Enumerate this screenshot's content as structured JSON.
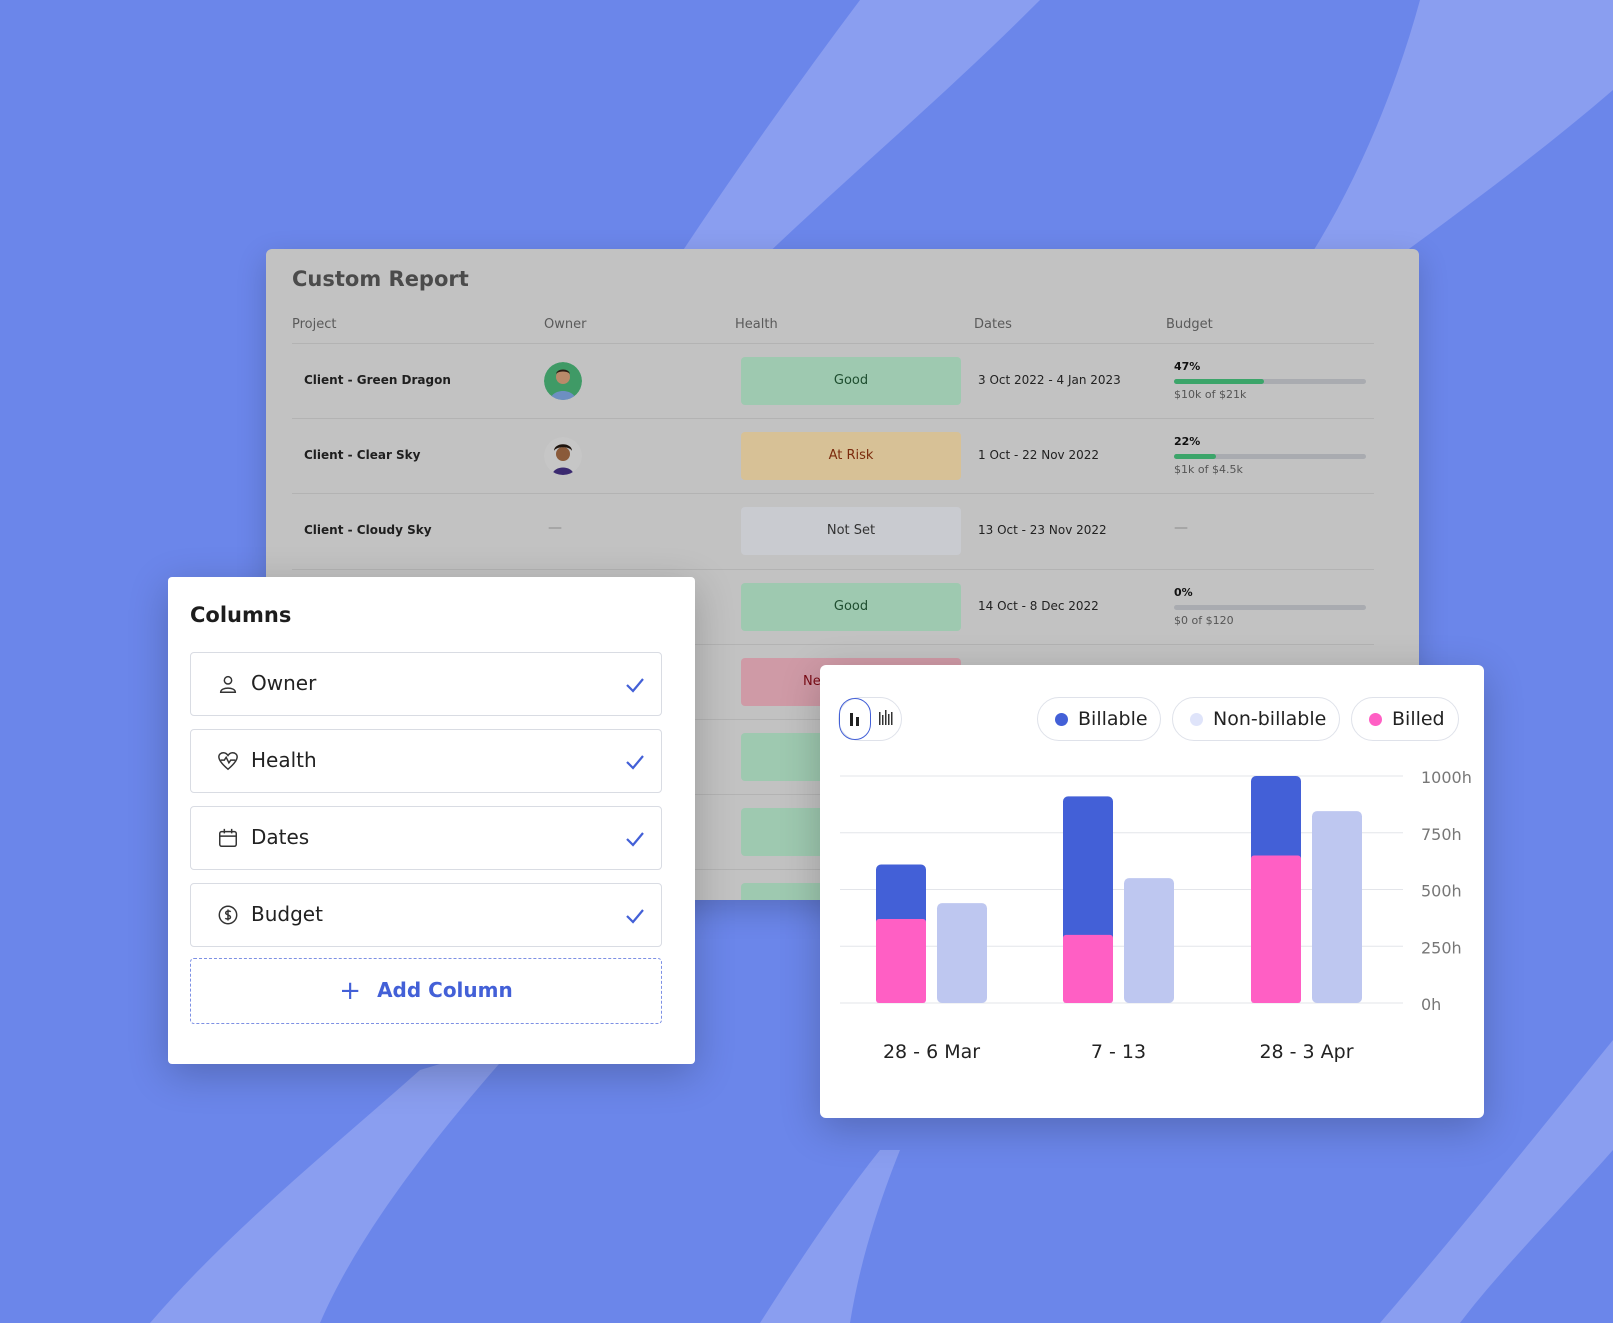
{
  "colors": {
    "background": "#6b86ea",
    "billable": "#4360d7",
    "non_billable": "#bec7f0",
    "billed": "#ff5fc4",
    "accent": "#4360d7"
  },
  "report": {
    "title": "Custom Report",
    "headers": [
      "Project",
      "Owner",
      "Health",
      "Dates",
      "Budget"
    ],
    "rows": [
      {
        "project": "Client - Green Dragon",
        "owner": "avatar",
        "health": "Good",
        "health_status": "good",
        "dates": "3 Oct 2022 - 4 Jan 2023",
        "budget_pct": "47%",
        "budget_fraction": 0.47,
        "budget_amount": "$10k of $21k"
      },
      {
        "project": "Client - Clear Sky",
        "owner": "avatar",
        "health": "At Risk",
        "health_status": "risk",
        "dates": "1 Oct - 22 Nov 2022",
        "budget_pct": "22%",
        "budget_fraction": 0.22,
        "budget_amount": "$1k of $4.5k"
      },
      {
        "project": "Client - Cloudy Sky",
        "owner": "—",
        "health": "Not Set",
        "health_status": "notset",
        "dates": "13 Oct - 23 Nov 2022",
        "budget_empty": "—"
      },
      {
        "project": "",
        "health": "Good",
        "health_status": "good",
        "dates": "14 Oct - 8 Dec 2022",
        "budget_pct": "0%",
        "budget_fraction": 0,
        "budget_amount": "$0 of $120"
      },
      {
        "project": "",
        "health": "Nee",
        "health_status": "need"
      }
    ]
  },
  "columns_panel": {
    "title": "Columns",
    "items": [
      {
        "label": "Owner",
        "icon": "user-icon",
        "checked": true
      },
      {
        "label": "Health",
        "icon": "heart-pulse-icon",
        "checked": true
      },
      {
        "label": "Dates",
        "icon": "calendar-icon",
        "checked": true
      },
      {
        "label": "Budget",
        "icon": "dollar-circle-icon",
        "checked": true
      }
    ],
    "add_label": "Add Column",
    "add_icon": "plus-icon"
  },
  "chart": {
    "legend": [
      {
        "label": "Billable",
        "color": "#4360d7"
      },
      {
        "label": "Non-billable",
        "color": "#dfe4fa"
      },
      {
        "label": "Billed",
        "color": "#ff5fc4"
      }
    ],
    "toggle_icons": [
      "bar-chart-icon",
      "stacked-chart-icon"
    ]
  },
  "chart_data": {
    "type": "bar",
    "categories": [
      "28 - 6 Mar",
      "7 - 13",
      "28 - 3 Apr"
    ],
    "series": [
      {
        "name": "Billable",
        "values": [
          610,
          910,
          1000
        ]
      },
      {
        "name": "Billed",
        "values": [
          370,
          300,
          650
        ]
      },
      {
        "name": "Non-billable",
        "values": [
          440,
          550,
          845
        ]
      }
    ],
    "y_ticks": [
      "1000h",
      "750h",
      "500h",
      "250h",
      "0h"
    ],
    "ylim": [
      0,
      1000
    ],
    "grid": true,
    "legend_position": "top-right"
  }
}
